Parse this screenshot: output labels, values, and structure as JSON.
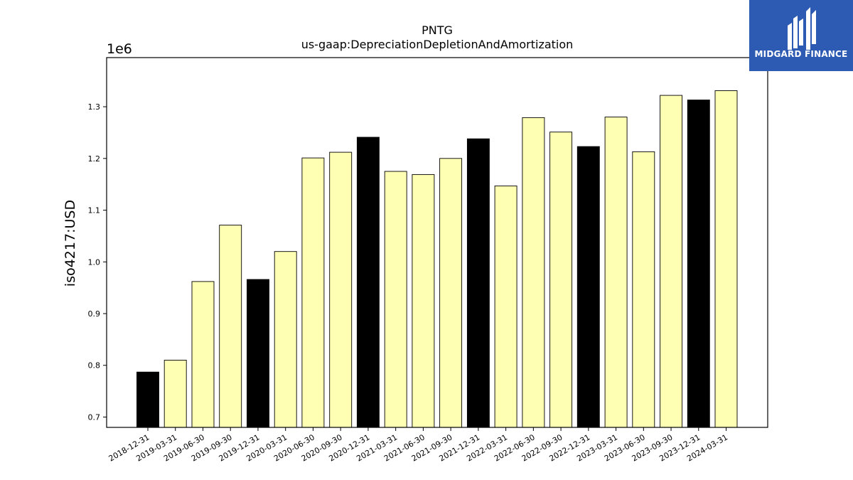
{
  "chart_data": {
    "type": "bar",
    "title": "PNTG",
    "subtitle": "us-gaap:DepreciationDepletionAndAmortization",
    "ylabel": "iso4217:USD",
    "xlabel": "",
    "offset_label": "1e6",
    "ylim": [
      680000,
      1395000
    ],
    "yticks": [
      700000,
      800000,
      900000,
      1000000,
      1100000,
      1200000,
      1300000
    ],
    "ytick_labels": [
      "0.7",
      "0.8",
      "0.9",
      "1.0",
      "1.1",
      "1.2",
      "1.3"
    ],
    "categories": [
      "2018-12-31",
      "2019-03-31",
      "2019-06-30",
      "2019-09-30",
      "2019-12-31",
      "2020-03-31",
      "2020-06-30",
      "2020-09-30",
      "2020-12-31",
      "2021-03-31",
      "2021-06-30",
      "2021-09-30",
      "2021-12-31",
      "2022-03-31",
      "2022-06-30",
      "2022-09-30",
      "2022-12-31",
      "2023-03-31",
      "2023-06-30",
      "2023-09-30",
      "2023-12-31",
      "2024-03-31"
    ],
    "values": [
      787000,
      810000,
      962000,
      1071000,
      966000,
      1020000,
      1201000,
      1212000,
      1241000,
      1175000,
      1169000,
      1200000,
      1238000,
      1147000,
      1279000,
      1251000,
      1223000,
      1280000,
      1213000,
      1322000,
      1313000,
      1331000
    ],
    "highlight": [
      true,
      false,
      false,
      false,
      true,
      false,
      false,
      false,
      true,
      false,
      false,
      false,
      true,
      false,
      false,
      false,
      true,
      false,
      false,
      false,
      true,
      false
    ],
    "colors": {
      "annual": "#000000",
      "quarterly": "#ffffb3",
      "edge": "#000000"
    },
    "grid": false
  },
  "logo": {
    "text": "MIDGARD FINANCE",
    "background": "#2d5bb3",
    "icon": "midgard-logo-icon"
  }
}
